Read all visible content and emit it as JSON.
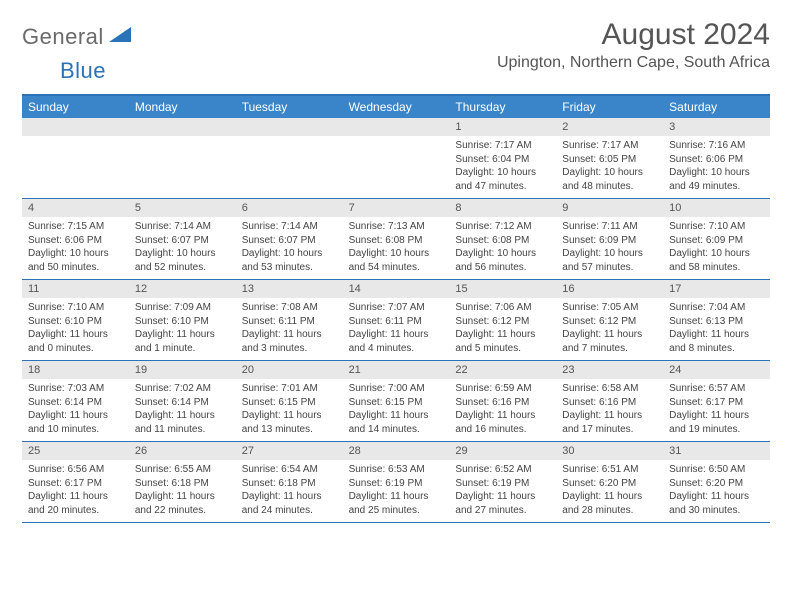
{
  "brand": {
    "part1": "General",
    "part2": "Blue"
  },
  "title": "August 2024",
  "location": "Upington, Northern Cape, South Africa",
  "colors": {
    "header_bg": "#3a85c9",
    "border": "#2a73b8",
    "daynum_bg": "#e8e8e8",
    "text": "#444444",
    "title": "#555555"
  },
  "dayNames": [
    "Sunday",
    "Monday",
    "Tuesday",
    "Wednesday",
    "Thursday",
    "Friday",
    "Saturday"
  ],
  "weeks": [
    [
      null,
      null,
      null,
      null,
      {
        "n": "1",
        "sr": "7:17 AM",
        "ss": "6:04 PM",
        "dl": "10 hours and 47 minutes."
      },
      {
        "n": "2",
        "sr": "7:17 AM",
        "ss": "6:05 PM",
        "dl": "10 hours and 48 minutes."
      },
      {
        "n": "3",
        "sr": "7:16 AM",
        "ss": "6:06 PM",
        "dl": "10 hours and 49 minutes."
      }
    ],
    [
      {
        "n": "4",
        "sr": "7:15 AM",
        "ss": "6:06 PM",
        "dl": "10 hours and 50 minutes."
      },
      {
        "n": "5",
        "sr": "7:14 AM",
        "ss": "6:07 PM",
        "dl": "10 hours and 52 minutes."
      },
      {
        "n": "6",
        "sr": "7:14 AM",
        "ss": "6:07 PM",
        "dl": "10 hours and 53 minutes."
      },
      {
        "n": "7",
        "sr": "7:13 AM",
        "ss": "6:08 PM",
        "dl": "10 hours and 54 minutes."
      },
      {
        "n": "8",
        "sr": "7:12 AM",
        "ss": "6:08 PM",
        "dl": "10 hours and 56 minutes."
      },
      {
        "n": "9",
        "sr": "7:11 AM",
        "ss": "6:09 PM",
        "dl": "10 hours and 57 minutes."
      },
      {
        "n": "10",
        "sr": "7:10 AM",
        "ss": "6:09 PM",
        "dl": "10 hours and 58 minutes."
      }
    ],
    [
      {
        "n": "11",
        "sr": "7:10 AM",
        "ss": "6:10 PM",
        "dl": "11 hours and 0 minutes."
      },
      {
        "n": "12",
        "sr": "7:09 AM",
        "ss": "6:10 PM",
        "dl": "11 hours and 1 minute."
      },
      {
        "n": "13",
        "sr": "7:08 AM",
        "ss": "6:11 PM",
        "dl": "11 hours and 3 minutes."
      },
      {
        "n": "14",
        "sr": "7:07 AM",
        "ss": "6:11 PM",
        "dl": "11 hours and 4 minutes."
      },
      {
        "n": "15",
        "sr": "7:06 AM",
        "ss": "6:12 PM",
        "dl": "11 hours and 5 minutes."
      },
      {
        "n": "16",
        "sr": "7:05 AM",
        "ss": "6:12 PM",
        "dl": "11 hours and 7 minutes."
      },
      {
        "n": "17",
        "sr": "7:04 AM",
        "ss": "6:13 PM",
        "dl": "11 hours and 8 minutes."
      }
    ],
    [
      {
        "n": "18",
        "sr": "7:03 AM",
        "ss": "6:14 PM",
        "dl": "11 hours and 10 minutes."
      },
      {
        "n": "19",
        "sr": "7:02 AM",
        "ss": "6:14 PM",
        "dl": "11 hours and 11 minutes."
      },
      {
        "n": "20",
        "sr": "7:01 AM",
        "ss": "6:15 PM",
        "dl": "11 hours and 13 minutes."
      },
      {
        "n": "21",
        "sr": "7:00 AM",
        "ss": "6:15 PM",
        "dl": "11 hours and 14 minutes."
      },
      {
        "n": "22",
        "sr": "6:59 AM",
        "ss": "6:16 PM",
        "dl": "11 hours and 16 minutes."
      },
      {
        "n": "23",
        "sr": "6:58 AM",
        "ss": "6:16 PM",
        "dl": "11 hours and 17 minutes."
      },
      {
        "n": "24",
        "sr": "6:57 AM",
        "ss": "6:17 PM",
        "dl": "11 hours and 19 minutes."
      }
    ],
    [
      {
        "n": "25",
        "sr": "6:56 AM",
        "ss": "6:17 PM",
        "dl": "11 hours and 20 minutes."
      },
      {
        "n": "26",
        "sr": "6:55 AM",
        "ss": "6:18 PM",
        "dl": "11 hours and 22 minutes."
      },
      {
        "n": "27",
        "sr": "6:54 AM",
        "ss": "6:18 PM",
        "dl": "11 hours and 24 minutes."
      },
      {
        "n": "28",
        "sr": "6:53 AM",
        "ss": "6:19 PM",
        "dl": "11 hours and 25 minutes."
      },
      {
        "n": "29",
        "sr": "6:52 AM",
        "ss": "6:19 PM",
        "dl": "11 hours and 27 minutes."
      },
      {
        "n": "30",
        "sr": "6:51 AM",
        "ss": "6:20 PM",
        "dl": "11 hours and 28 minutes."
      },
      {
        "n": "31",
        "sr": "6:50 AM",
        "ss": "6:20 PM",
        "dl": "11 hours and 30 minutes."
      }
    ]
  ],
  "labels": {
    "sunrise": "Sunrise:",
    "sunset": "Sunset:",
    "daylight": "Daylight:"
  }
}
